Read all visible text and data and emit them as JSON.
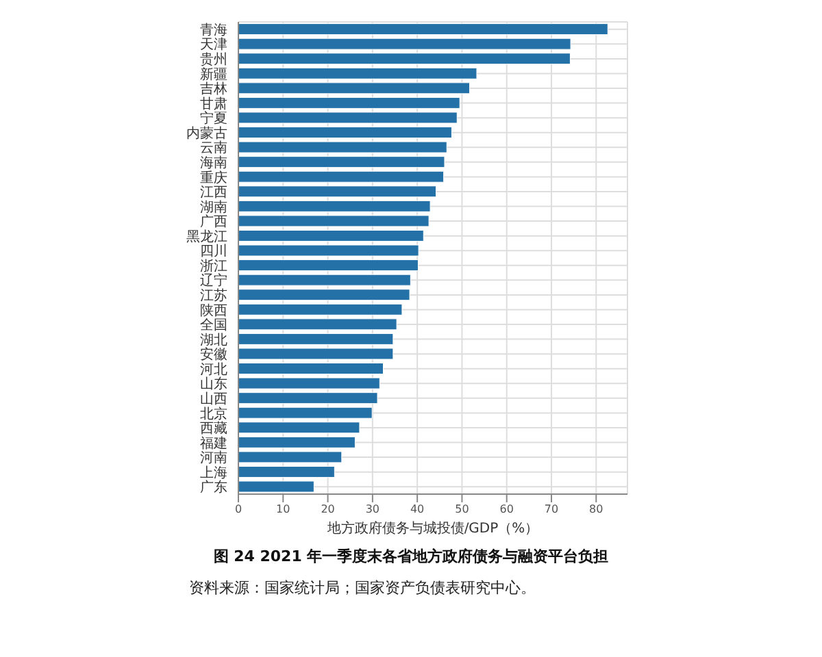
{
  "chart_data": {
    "type": "bar",
    "orientation": "horizontal",
    "title": "图 24  2021 年一季度末各省地方政府债务与融资平台负担",
    "xlabel": "地方政府债务与城投债/GDP（%）",
    "categories": [
      "青海",
      "天津",
      "贵州",
      "新疆",
      "吉林",
      "甘肃",
      "宁夏",
      "内蒙古",
      "云南",
      "海南",
      "重庆",
      "江西",
      "湖南",
      "广西",
      "黑龙江",
      "四川",
      "浙江",
      "辽宁",
      "江苏",
      "陕西",
      "全国",
      "湖北",
      "安徽",
      "河北",
      "山东",
      "山西",
      "北京",
      "西藏",
      "福建",
      "河南",
      "上海",
      "广东"
    ],
    "values": [
      82.6,
      74.3,
      74.2,
      53.3,
      51.7,
      49.5,
      48.9,
      47.7,
      46.6,
      46.1,
      45.9,
      44.2,
      42.9,
      42.6,
      41.4,
      40.3,
      40.2,
      38.5,
      38.3,
      36.6,
      35.4,
      34.6,
      34.6,
      32.4,
      31.6,
      31.1,
      29.9,
      27.1,
      26.1,
      23.1,
      21.5,
      16.9
    ],
    "color": "#2471a8",
    "xlim": [
      0,
      87
    ],
    "xticks": [
      0,
      10,
      20,
      30,
      40,
      50,
      60,
      70,
      80
    ],
    "grid": true,
    "annotations": [
      "资料来源：国家统计局；国家资产负债表研究中心。"
    ]
  }
}
